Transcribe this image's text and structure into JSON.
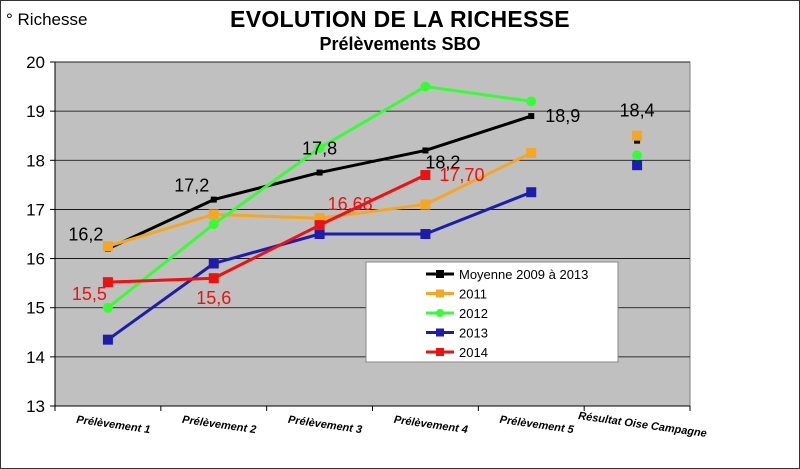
{
  "chart_data": {
    "type": "line",
    "title": "EVOLUTION DE LA RICHESSE",
    "subtitle": "Prélèvements SBO",
    "ylabel": "° Richesse",
    "ylim": [
      13,
      20
    ],
    "yticks": [
      13,
      14,
      15,
      16,
      17,
      18,
      19,
      20
    ],
    "categories": [
      "Prélèvement 1",
      "Prélèvement 2",
      "Prélèvement 3",
      "Prélèvement 4",
      "Prélèvement 5",
      "Résultat Oise Campagne"
    ],
    "grid": true,
    "legend_position": "bottom-right",
    "series": [
      {
        "name": "Moyenne 2009 à 2013",
        "color": "#000000",
        "marker": "square",
        "values": [
          16.2,
          17.2,
          17.75,
          18.2,
          18.9,
          18.4
        ]
      },
      {
        "name": "2011",
        "color": "#f5a623",
        "marker": "square",
        "values": [
          16.25,
          16.9,
          16.82,
          17.1,
          18.15,
          18.5
        ]
      },
      {
        "name": "2012",
        "color": "#33ff33",
        "marker": "circle",
        "values": [
          15.0,
          16.7,
          18.25,
          19.5,
          19.2,
          18.1
        ]
      },
      {
        "name": "2013",
        "color": "#1c1cb0",
        "marker": "square",
        "values": [
          14.35,
          15.9,
          16.5,
          16.5,
          17.35,
          17.9
        ]
      },
      {
        "name": "2014",
        "color": "#ee1111",
        "marker": "square",
        "values": [
          15.52,
          15.6,
          16.68,
          17.7,
          null,
          null
        ]
      }
    ],
    "data_labels": [
      {
        "text": "16,2",
        "series": 0,
        "index": 0,
        "color": "#000000",
        "pos": "upper-left"
      },
      {
        "text": "17,2",
        "series": 0,
        "index": 1,
        "color": "#000000",
        "pos": "upper-left"
      },
      {
        "text": "17,8",
        "series": 0,
        "index": 2,
        "color": "#000000",
        "pos": "above"
      },
      {
        "text": "18,2",
        "series": 0,
        "index": 3,
        "color": "#000000",
        "pos": "below-right"
      },
      {
        "text": "18,9",
        "series": 0,
        "index": 4,
        "color": "#000000",
        "pos": "right"
      },
      {
        "text": "18,4",
        "series": 0,
        "index": 5,
        "color": "#000000",
        "pos": "high"
      },
      {
        "text": "15,5",
        "series": 4,
        "index": 0,
        "color": "#ee1111",
        "pos": "lower-left"
      },
      {
        "text": "15,6",
        "series": 4,
        "index": 1,
        "color": "#ee1111",
        "pos": "below"
      },
      {
        "text": "16,68",
        "series": 4,
        "index": 2,
        "color": "#ee1111",
        "pos": "upper-right"
      },
      {
        "text": "17,70",
        "series": 4,
        "index": 3,
        "color": "#ee1111",
        "pos": "right"
      }
    ]
  }
}
